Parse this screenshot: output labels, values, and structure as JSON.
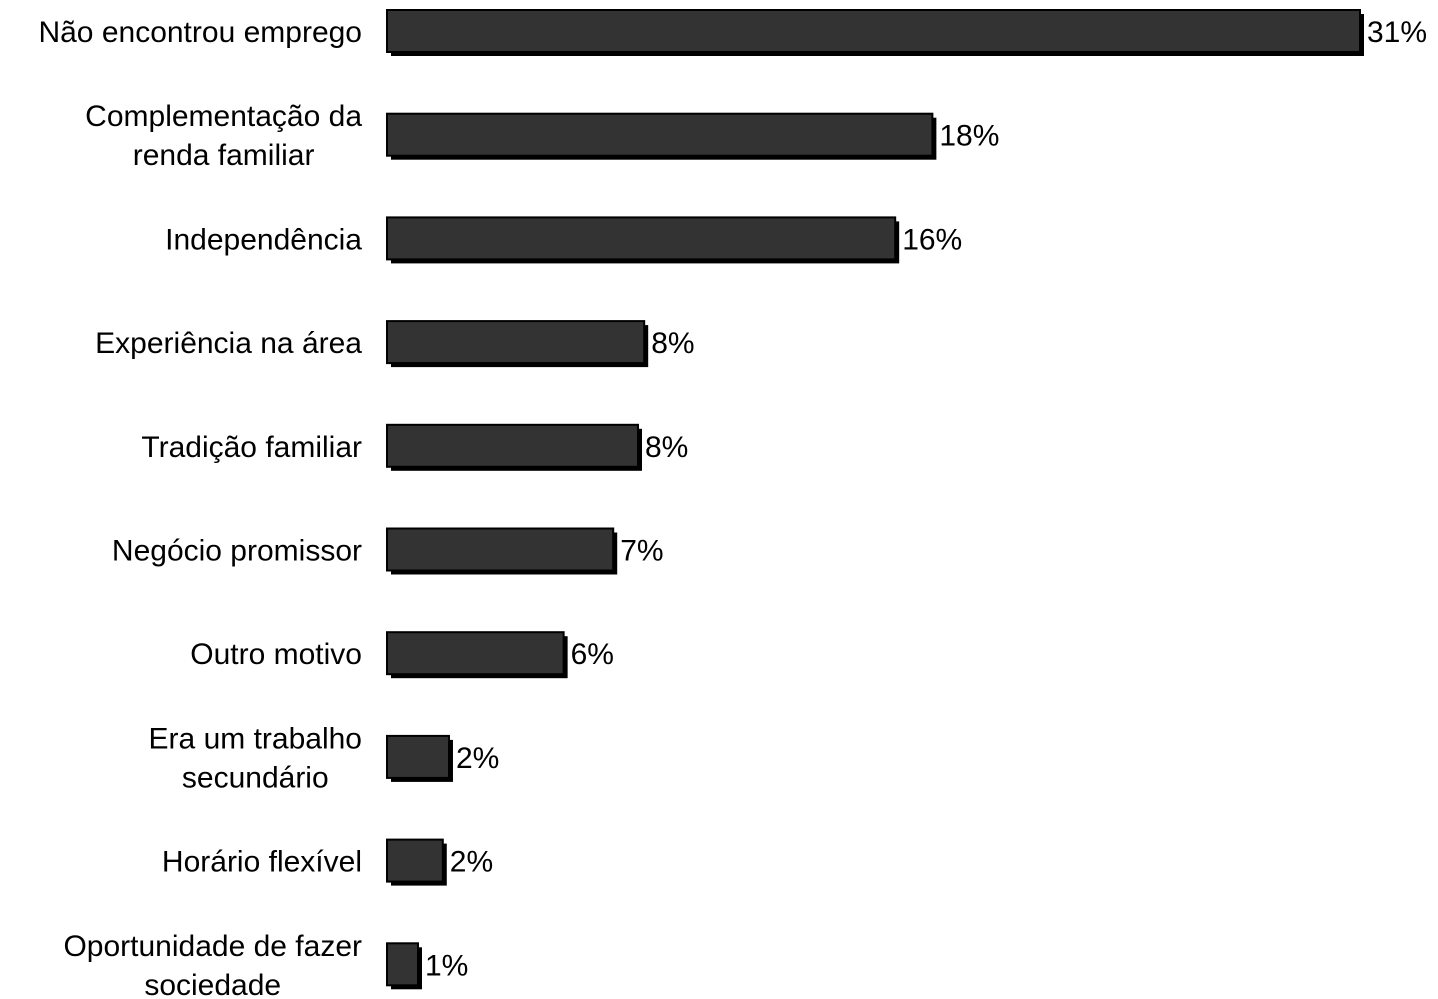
{
  "chart_data": {
    "type": "bar",
    "orientation": "horizontal",
    "categories": [
      "Não encontrou emprego",
      "Complementação da renda familiar",
      "Independência",
      "Experiência na área",
      "Tradição familiar",
      "Negócio promissor",
      "Outro motivo",
      "Era um trabalho secundário",
      "Horário flexível",
      "Oportunidade de fazer sociedade"
    ],
    "category_lines": [
      [
        "Não encontrou emprego"
      ],
      [
        "Complementação da",
        "renda familiar"
      ],
      [
        "Independência"
      ],
      [
        "Experiência na área"
      ],
      [
        "Tradição familiar"
      ],
      [
        "Negócio promissor"
      ],
      [
        "Outro motivo"
      ],
      [
        "Era um trabalho",
        "secundário"
      ],
      [
        "Horário flexível"
      ],
      [
        "Oportunidade de fazer",
        "sociedade"
      ]
    ],
    "values": [
      31.4,
      17.6,
      16.4,
      8.3,
      8.1,
      7.3,
      5.7,
      2.0,
      1.8,
      1.0
    ],
    "value_labels": [
      "31%",
      "18%",
      "16%",
      "8%",
      "8%",
      "7%",
      "6%",
      "2%",
      "2%",
      "1%"
    ],
    "unit": "%",
    "xlim": [
      0,
      31.4
    ],
    "title": "",
    "xlabel": "",
    "ylabel": "",
    "grid": false,
    "legend": "none",
    "colors": {
      "bar_fill": "#333333",
      "bar_stroke": "#000000",
      "bar_shadow": "#000000",
      "text": "#000000",
      "background": "#ffffff"
    }
  }
}
